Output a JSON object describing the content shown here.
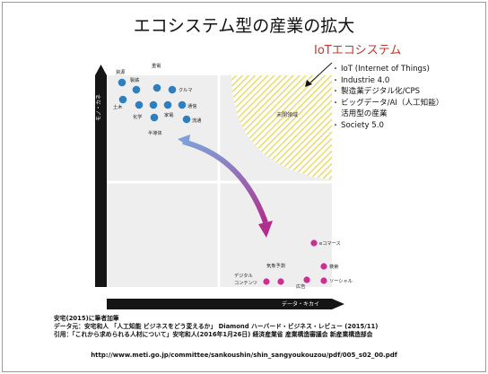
{
  "title": "エコシステム型の産業の拡大",
  "iot": {
    "heading": "IoTエコシステム",
    "items": [
      {
        "line1": "IoT (Internet of Things)"
      },
      {
        "line1": "Industrie 4.0"
      },
      {
        "line1": "製造業デジタル化/CPS"
      },
      {
        "line1": "ビッグデータ/AI（人工知能）",
        "line2": "活用型の産業"
      },
      {
        "line1": "Society 5.0"
      }
    ]
  },
  "diagram": {
    "y_axis_label": "モノ・カネ",
    "x_axis_label": "データ・キカイ",
    "region_label": "未開領域",
    "colors": {
      "blue_dot": "#2e7fc0",
      "pink_dot": "#cc2f8f",
      "hatch": "#e6d44a",
      "arrow_start": "#7f9fd8",
      "arrow_end": "#b02d8c"
    },
    "top_left_nodes": [
      {
        "label": "資源"
      },
      {
        "label": "製鉄"
      },
      {
        "label": "重電"
      },
      {
        "label": "クルマ"
      },
      {
        "label": "土木"
      },
      {
        "label": "化学"
      },
      {
        "label": "家電"
      },
      {
        "label": "通信"
      },
      {
        "label": "流通"
      },
      {
        "label": "半導体"
      }
    ],
    "bottom_right_nodes": [
      {
        "label": "eコマース"
      },
      {
        "label": "検索"
      },
      {
        "label": "ソーシャル"
      },
      {
        "label": "広告"
      },
      {
        "label": "気象予測"
      }
    ],
    "extra_label_1": "デジタル",
    "extra_label_2": "コンテンツ"
  },
  "footnotes": [
    "安宅(2015)に筆者加筆",
    "データ元：安宅和人 「人工知能 ビジネスをどう変えるか」 Diamond ハーバード・ビジネス・レビュー (2015/11)",
    "引用：「これから求められる人材について」安宅和人(2016年1月26日) 経済産業省 産業構造審議会 新産業構造部会"
  ],
  "url": "http://www.meti.go.jp/committee/sankoushin/shin_sangyoukouzou/pdf/005_s02_00.pdf"
}
